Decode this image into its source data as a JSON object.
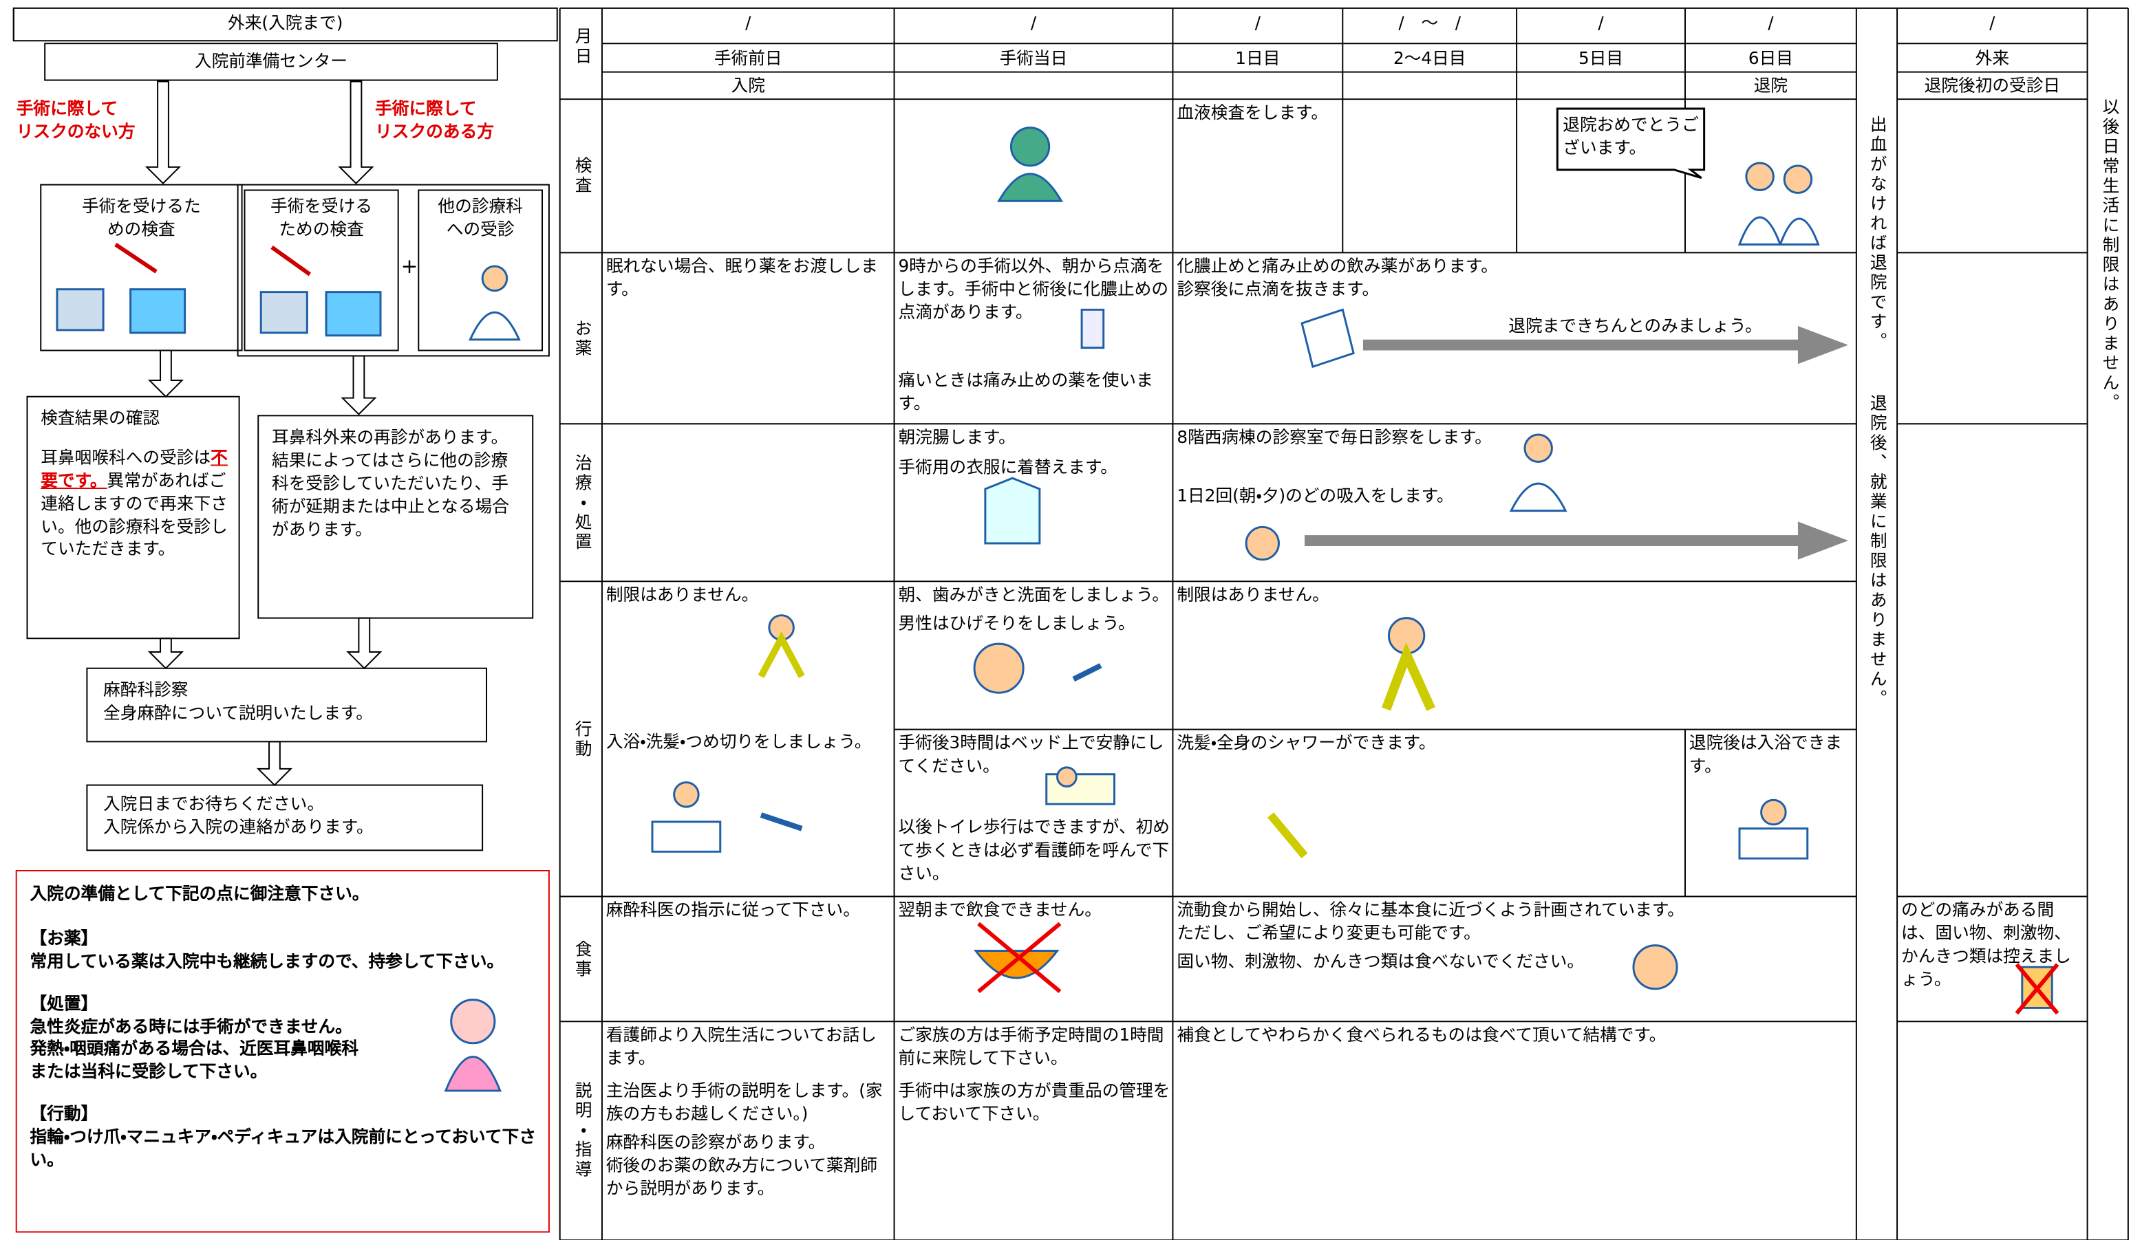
{
  "left_panel": {
    "header": "外来(入院まで)",
    "center": "入院前準備センター",
    "no_risk_label": "手術に際して\nリスクのない方",
    "risk_label": "手術に際して\nリスクのある方",
    "exam_no_risk": "手術を受けるた\nめの検査",
    "exam_risk": "手術を受ける\nための検査",
    "plus": "+",
    "other_dept": "他の診療科\nへの受診",
    "result": {
      "title": "検査結果の確認",
      "text_before": "耳鼻咽喉科への受診は",
      "emphasis": "不要です。",
      "text_after": "異常があればご連絡しますので再来下さい。他の診療科を受診していただきます。"
    },
    "ent_revisit": "耳鼻科外来の再診があります。\n結果によってはさらに他の診療科を受診していただいたり、手術が延期または中止となる場合があります。",
    "anesthesia": "麻酔科診察\n全身麻酔について説明いたします。",
    "wait": "入院日までお待ちください。\n入院係から入院の連絡があります。",
    "notice": {
      "title": "入院の準備として下記の点に御注意下さい。",
      "sections": [
        {
          "heading": "【お薬】",
          "text": "常用している薬は入院中も継続しますので、持参して下さい。"
        },
        {
          "heading": "【処置】",
          "text": "急性炎症がある時には手術ができません。\n発熱・咽頭痛がある場合は、近医耳鼻咽喉科\nまたは当科に受診して下さい。"
        },
        {
          "heading": "【行動】",
          "text": "指輪・つけ爪・マニュキア・ペディキュアは入院前にとっておいて下さい。"
        }
      ]
    }
  },
  "table": {
    "month_day": "月日",
    "dates": [
      "/",
      "/",
      "/",
      "/　～　/",
      "/",
      "/"
    ],
    "outpatient_date": "/",
    "days": [
      "手術前日",
      "手術当日",
      "1日目",
      "2～4日目",
      "5日目",
      "6日目"
    ],
    "outpatient": "外来",
    "admission": "入院",
    "discharge": "退院",
    "first_visit": "退院後初の受診日",
    "row_labels": [
      "検査",
      "お薬",
      "治療・処置",
      "行動",
      "食事",
      "説明・指導"
    ],
    "exam": {
      "day1": "血液検査をします。",
      "bubble": "退院おめでとうございます。"
    },
    "medicine": {
      "pre_op": "眠れない場合、眠り薬をお渡しします。",
      "op_day": [
        "9時からの手術以外、朝から点滴をします。手術中と術後に化膿止めの点滴があります。",
        "痛いときは痛み止めの薬を使います。"
      ],
      "post_op": "化膿止めと痛み止めの飲み薬があります。\n診察後に点滴を抜きます。",
      "arrow_label": "退院まできちんとのみましょう。"
    },
    "treatment": {
      "op_day": [
        "朝浣腸します。",
        "手術用の衣服に着替えます。"
      ],
      "post_op": [
        "8階西病棟の診察室で毎日診察をします。",
        "1日2回(朝・夕)のどの吸入をします。"
      ]
    },
    "activity": {
      "pre_op": [
        "制限はありません。",
        "入浴・洗髪・つめ切りをしましょう。"
      ],
      "op_day": [
        "朝、歯みがきと洗面をしましょう。",
        "男性はひげそりをしましょう。",
        "手術後3時間はベッド上で安静にしてください。",
        "以後トイレ歩行はできますが、初めて歩くときは必ず看護師を呼んで下さい。"
      ],
      "post_op": [
        "制限はありません。",
        "洗髪・全身のシャワーができます。"
      ],
      "day6": "退院後は入浴できます。"
    },
    "meal": {
      "pre_op": "麻酔科医の指示に従って下さい。",
      "op_day": "翌朝まで飲食できません。",
      "post_op": [
        "流動食から開始し、徐々に基本食に近づくよう計画されています。\nただし、ご希望により変更も可能です。",
        "固い物、刺激物、かんきつ類は食べないでください。"
      ],
      "outpatient": "のどの痛みがある間は、固い物、刺激物、かんきつ類は控えましょう。"
    },
    "guidance": {
      "pre_op": [
        "看護師より入院生活についてお話します。",
        "主治医より手術の説明をします。(家族の方もお越しください。)",
        "麻酔科医の診察があります。\n術後のお薬の飲み方について薬剤師から説明があります。"
      ],
      "op_day": [
        "ご家族の方は手術予定時間の1時間前に来院して下さい。",
        "手術中は家族の方が貴重品の管理をしておいて下さい。"
      ],
      "post_op": "補食としてやわらかく食べられるものは食べて頂いて結構です。"
    },
    "vertical_notes": [
      "出血がなければ退院です。",
      "退院後、就業に制限はありません。",
      "以後日常生活に制限はありません。"
    ]
  }
}
